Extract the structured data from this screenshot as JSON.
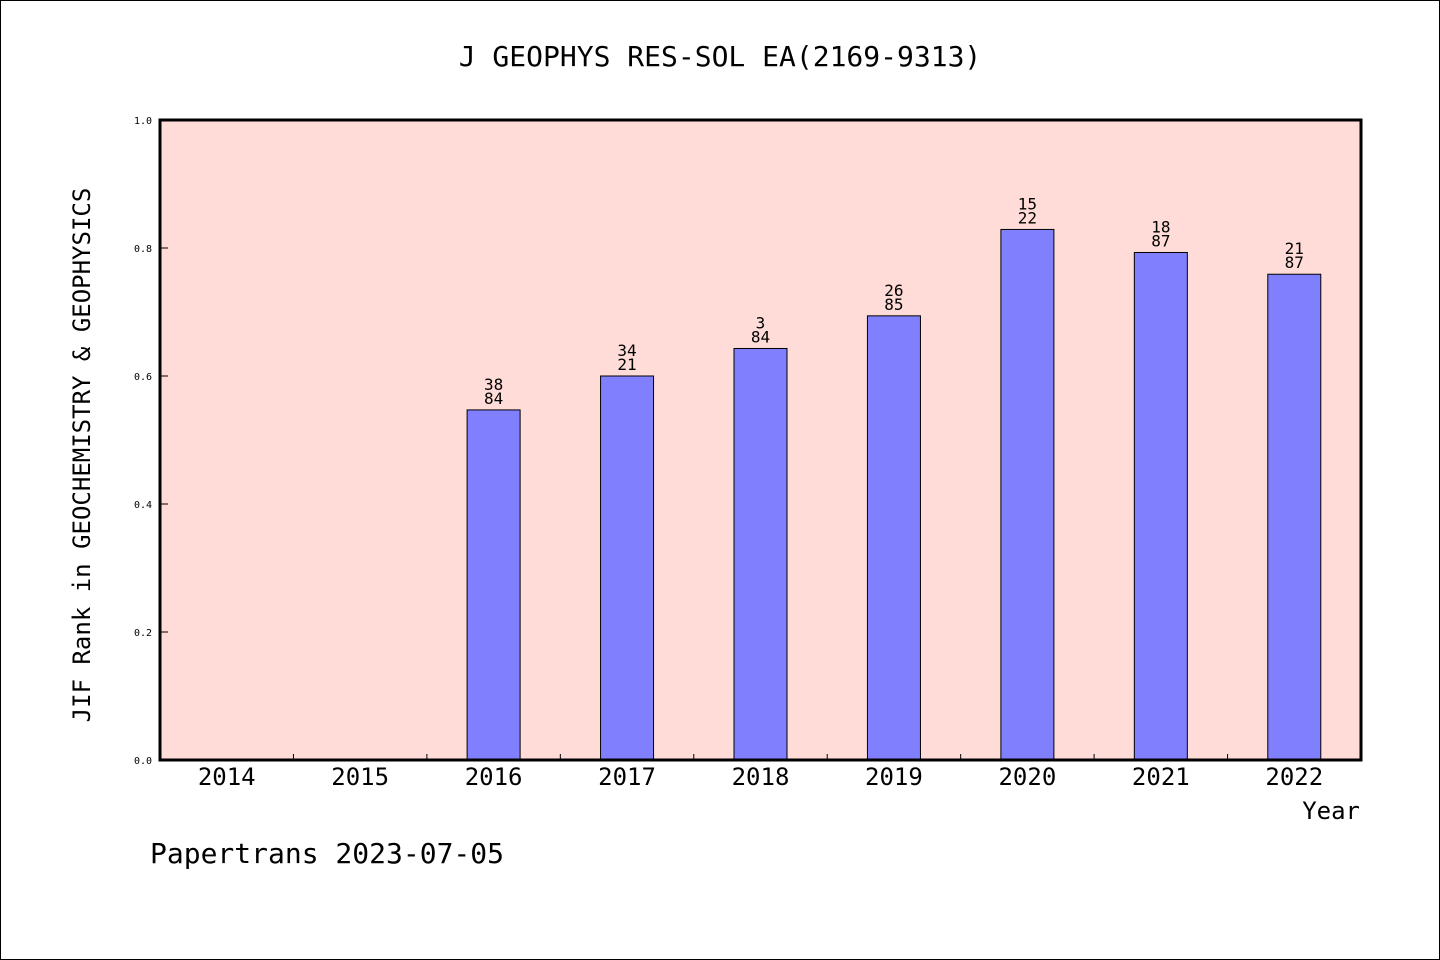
{
  "chart_data": {
    "type": "bar",
    "title": "J GEOPHYS RES-SOL EA(2169-9313)",
    "xlabel": "Year",
    "ylabel": "JIF Rank in GEOCHEMISTRY & GEOPHYSICS",
    "ylim": [
      0,
      1.0
    ],
    "yticks": [
      "0.0",
      "0.2",
      "0.4",
      "0.6",
      "0.8",
      "1.0"
    ],
    "grid": false,
    "categories": [
      "2014",
      "2015",
      "2016",
      "2017",
      "2018",
      "2019",
      "2020",
      "2021",
      "2022"
    ],
    "values": [
      null,
      null,
      0.547,
      0.6,
      0.643,
      0.694,
      0.829,
      0.793,
      0.759
    ],
    "bar_labels": [
      null,
      null,
      [
        "38",
        "84"
      ],
      [
        "34",
        "21"
      ],
      [
        "3",
        "84"
      ],
      [
        "26",
        "85"
      ],
      [
        "15",
        "22"
      ],
      [
        "18",
        "87"
      ],
      [
        "21",
        "87"
      ]
    ],
    "colors": {
      "plot_background": "#FFDCD8",
      "bar_fill": "#8080FF",
      "bar_stroke": "#000000"
    }
  },
  "footer": "Papertrans 2023-07-05"
}
